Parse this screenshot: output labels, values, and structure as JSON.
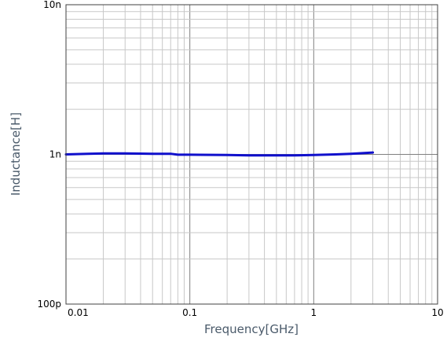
{
  "chart_data": {
    "type": "line",
    "title": "",
    "xlabel": "Frequency[GHz]",
    "ylabel": "Inductance[H]",
    "x_scale": "log",
    "y_scale": "log",
    "xlim": [
      0.01,
      10
    ],
    "ylim": [
      1e-10,
      1e-08
    ],
    "grid": true,
    "legend": "none",
    "x_tick_labels": [
      {
        "value": 0.01,
        "label": "0.01"
      },
      {
        "value": 0.1,
        "label": "0.1"
      },
      {
        "value": 1,
        "label": "1"
      },
      {
        "value": 10,
        "label": "10"
      }
    ],
    "y_tick_labels": [
      {
        "value": 1e-10,
        "label": "100p"
      },
      {
        "value": 1e-09,
        "label": "1n"
      },
      {
        "value": 1e-08,
        "label": "10n"
      }
    ],
    "series": [
      {
        "color": "#1010cc",
        "x": [
          0.01,
          0.015,
          0.02,
          0.03,
          0.05,
          0.07,
          0.08,
          0.1,
          0.2,
          0.3,
          0.5,
          0.7,
          1.0,
          1.5,
          2.0,
          3.0
        ],
        "y": [
          1e-09,
          1.01e-09,
          1.015e-09,
          1.015e-09,
          1.01e-09,
          1.01e-09,
          9.95e-10,
          9.95e-10,
          9.9e-10,
          9.85e-10,
          9.85e-10,
          9.85e-10,
          9.9e-10,
          1e-09,
          1.01e-09,
          1.03e-09
        ]
      }
    ]
  },
  "colors": {
    "minor_grid": "#c8c8c8",
    "major_grid": "#808080",
    "frame": "#404040"
  }
}
